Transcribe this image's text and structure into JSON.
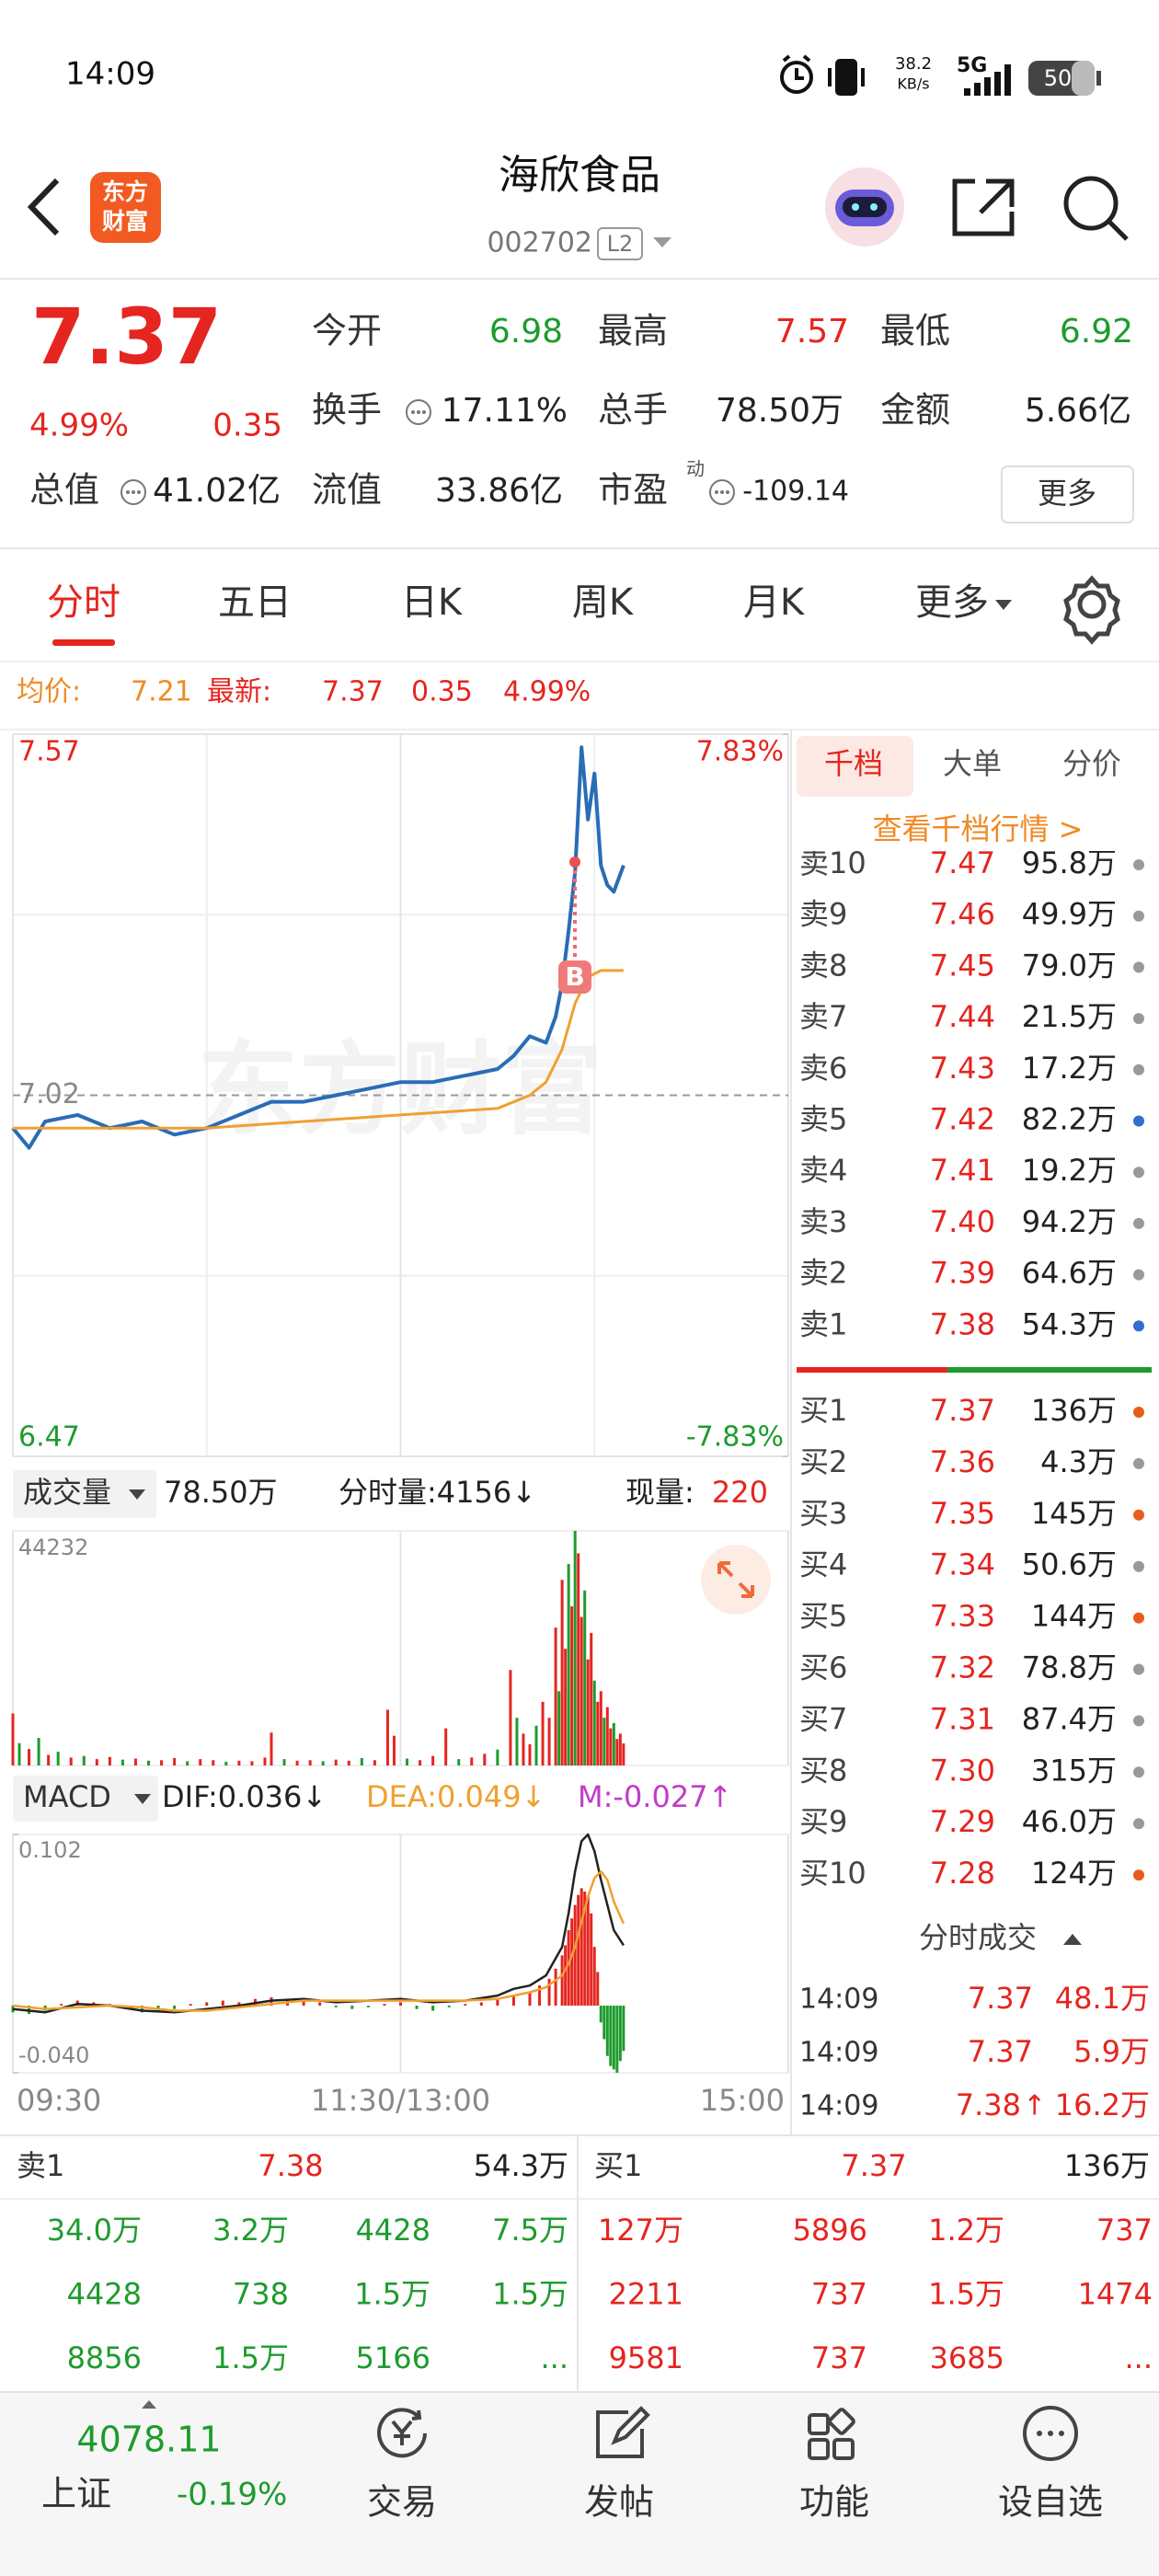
{
  "status_bar": {
    "time": "14:09",
    "net_speed": "38.2",
    "net_unit": "KB/s",
    "network": "5G",
    "battery": "50"
  },
  "header": {
    "logo": [
      "东方",
      "财富"
    ],
    "title": "海欣食品",
    "code": "002702",
    "level": "L2"
  },
  "quote": {
    "price": "7.37",
    "change_pct": "4.99%",
    "change": "0.35",
    "color": "#e5251f",
    "stats": [
      [
        {
          "label": "今开",
          "value": "6.98",
          "color": "#1e9b2d"
        },
        {
          "label": "最高",
          "value": "7.57",
          "color": "#e5251f"
        },
        {
          "label": "最低",
          "value": "6.92",
          "color": "#1e9b2d"
        }
      ],
      [
        {
          "label": "换手",
          "value": "17.11%",
          "color": "#222222"
        },
        {
          "label": "总手",
          "value": "78.50万",
          "color": "#222222"
        },
        {
          "label": "金额",
          "value": "5.66亿",
          "color": "#222222"
        }
      ],
      [
        {
          "label": "总值",
          "value": "41.02亿",
          "color": "#222222"
        },
        {
          "label": "流值",
          "value": "33.86亿",
          "color": "#222222"
        },
        {
          "label": "市盈",
          "sup": "动",
          "value": "-109.14",
          "color": "#222222"
        }
      ]
    ],
    "more_button": "更多"
  },
  "tabs": {
    "items": [
      "分时",
      "五日",
      "日K",
      "周K",
      "月K",
      "更多"
    ],
    "active": 0,
    "active_color": "#e5251f"
  },
  "info": {
    "avg_label": "均价:",
    "avg": "7.21",
    "last_label": "最新:",
    "last": "7.37",
    "change": "0.35",
    "change_pct": "4.99%"
  },
  "intraday": {
    "type": "line",
    "watermark": "东方财富",
    "buy_marker": "B",
    "xlim": [
      0,
      240
    ],
    "xticks": [
      {
        "value": 0,
        "label": "09:30"
      },
      {
        "value": 120,
        "label": "11:30/13:00"
      },
      {
        "value": 240,
        "label": "15:00"
      }
    ],
    "ylim": [
      6.47,
      7.57
    ],
    "yticks": [
      6.47,
      7.02,
      7.57
    ],
    "y2lim": [
      -7.83,
      7.83
    ],
    "y2ticks": [
      {
        "value": -7.83,
        "label": "-7.83%"
      },
      {
        "value": 7.83,
        "label": "7.83%"
      }
    ],
    "series": [
      {
        "name": "最新",
        "color": "#2a6cb6",
        "x": [
          0,
          5,
          10,
          20,
          30,
          40,
          50,
          60,
          70,
          80,
          90,
          100,
          110,
          120,
          130,
          140,
          150,
          155,
          160,
          165,
          168,
          170,
          172,
          174,
          176,
          178,
          180,
          182,
          184,
          186,
          189
        ],
        "values": [
          6.97,
          6.94,
          6.98,
          6.99,
          6.97,
          6.98,
          6.96,
          6.97,
          6.99,
          7.01,
          7.01,
          7.02,
          7.03,
          7.04,
          7.04,
          7.05,
          7.06,
          7.08,
          7.11,
          7.1,
          7.14,
          7.19,
          7.27,
          7.36,
          7.55,
          7.44,
          7.51,
          7.37,
          7.34,
          7.33,
          7.37
        ]
      },
      {
        "name": "均价",
        "color": "#f0a030",
        "x": [
          0,
          30,
          60,
          90,
          120,
          150,
          160,
          165,
          170,
          174,
          178,
          182,
          186,
          189
        ],
        "values": [
          6.97,
          6.97,
          6.97,
          6.98,
          6.99,
          7.0,
          7.02,
          7.04,
          7.09,
          7.16,
          7.2,
          7.21,
          7.21,
          7.21
        ]
      }
    ]
  },
  "volume": {
    "type": "bar",
    "label": "成交量",
    "total": "78.50万",
    "minute_volume": "分时量:4156↓",
    "current_label": "现量:",
    "current": "220",
    "ylim": [
      0,
      44232
    ],
    "yticks": [
      44232
    ],
    "x": [
      0,
      2,
      5,
      8,
      11,
      14,
      18,
      22,
      26,
      30,
      34,
      38,
      42,
      46,
      50,
      54,
      58,
      62,
      66,
      70,
      74,
      78,
      80,
      84,
      88,
      92,
      96,
      100,
      104,
      108,
      112,
      116,
      118,
      122,
      126,
      130,
      134,
      138,
      142,
      146,
      150,
      154,
      156,
      158,
      160,
      162,
      164,
      166,
      168,
      169,
      170,
      171,
      172,
      173,
      174,
      175,
      176,
      177,
      178,
      179,
      180,
      181,
      182,
      183,
      184,
      185,
      186,
      187,
      188,
      189
    ],
    "values": [
      9800,
      4200,
      3100,
      5200,
      2000,
      2600,
      1500,
      1800,
      1200,
      1600,
      1100,
      1300,
      900,
      1000,
      1400,
      800,
      1200,
      1000,
      700,
      900,
      800,
      1500,
      6200,
      1200,
      900,
      1000,
      800,
      1100,
      900,
      1400,
      1000,
      10500,
      5600,
      1300,
      1000,
      1800,
      7000,
      1200,
      1500,
      2200,
      3000,
      18000,
      9000,
      6000,
      4000,
      7500,
      12000,
      9000,
      26000,
      14000,
      35000,
      22000,
      38000,
      30000,
      44232,
      40000,
      28000,
      33000,
      20000,
      25000,
      16000,
      12000,
      14000,
      9000,
      11000,
      7000,
      8000,
      5000,
      6000,
      4156
    ],
    "colors": [
      "#e5251f",
      "#1e9b2d",
      "#e5251f",
      "#1e9b2d",
      "#e5251f",
      "#1e9b2d",
      "#e5251f",
      "#1e9b2d",
      "#e5251f",
      "#e5251f",
      "#1e9b2d",
      "#e5251f",
      "#1e9b2d",
      "#e5251f",
      "#e5251f",
      "#1e9b2d",
      "#e5251f",
      "#e5251f",
      "#1e9b2d",
      "#e5251f",
      "#e5251f",
      "#e5251f",
      "#e5251f",
      "#1e9b2d",
      "#e5251f",
      "#e5251f",
      "#1e9b2d",
      "#e5251f",
      "#e5251f",
      "#1e9b2d",
      "#e5251f",
      "#e5251f",
      "#e5251f",
      "#1e9b2d",
      "#e5251f",
      "#e5251f",
      "#e5251f",
      "#1e9b2d",
      "#e5251f",
      "#e5251f",
      "#1e9b2d",
      "#e5251f",
      "#1e9b2d",
      "#e5251f",
      "#e5251f",
      "#1e9b2d",
      "#e5251f",
      "#e5251f",
      "#e5251f",
      "#1e9b2d",
      "#e5251f",
      "#e5251f",
      "#1e9b2d",
      "#e5251f",
      "#1e9b2d",
      "#e5251f",
      "#e5251f",
      "#1e9b2d",
      "#e5251f",
      "#e5251f",
      "#1e9b2d",
      "#e5251f",
      "#e5251f",
      "#1e9b2d",
      "#e5251f",
      "#e5251f",
      "#1e9b2d",
      "#e5251f",
      "#e5251f",
      "#e5251f"
    ]
  },
  "macd": {
    "type": "line",
    "label": "MACD",
    "dif_label": "DIF:0.036↓",
    "dea_label": "DEA:0.049↓",
    "m_label": "M:-0.027↑",
    "m_label_color": "#c03cc8",
    "ylim": [
      -0.04,
      0.102
    ],
    "yticks": [
      {
        "value": -0.04,
        "label": "-0.040"
      },
      0.102
    ],
    "x": [
      0,
      10,
      20,
      30,
      40,
      50,
      60,
      70,
      80,
      90,
      100,
      110,
      120,
      130,
      140,
      150,
      155,
      160,
      165,
      170,
      172,
      174,
      176,
      178,
      180,
      182,
      184,
      186,
      189
    ],
    "series": [
      {
        "name": "DIF",
        "color": "#222222",
        "values": [
          -0.002,
          -0.004,
          0.001,
          0.0,
          -0.003,
          -0.004,
          -0.002,
          0.0,
          0.003,
          0.004,
          0.002,
          0.003,
          0.004,
          0.002,
          0.003,
          0.006,
          0.01,
          0.012,
          0.018,
          0.035,
          0.055,
          0.08,
          0.098,
          0.102,
          0.092,
          0.075,
          0.06,
          0.045,
          0.036
        ]
      },
      {
        "name": "DEA",
        "color": "#f0a030",
        "values": [
          0.0,
          -0.002,
          -0.001,
          0.0,
          -0.001,
          -0.003,
          -0.003,
          -0.001,
          0.001,
          0.003,
          0.003,
          0.003,
          0.003,
          0.003,
          0.003,
          0.004,
          0.006,
          0.008,
          0.011,
          0.018,
          0.025,
          0.035,
          0.05,
          0.065,
          0.076,
          0.08,
          0.075,
          0.062,
          0.049
        ]
      }
    ],
    "m": {
      "up_color": "#e5251f",
      "down_color": "#1e9b2d",
      "x": [
        0,
        5,
        10,
        15,
        20,
        25,
        30,
        35,
        40,
        45,
        50,
        55,
        60,
        65,
        70,
        75,
        80,
        85,
        90,
        95,
        100,
        105,
        110,
        115,
        120,
        125,
        130,
        135,
        140,
        145,
        150,
        155,
        160,
        163,
        166,
        168,
        170,
        171,
        172,
        173,
        174,
        175,
        176,
        177,
        178,
        179,
        180,
        181,
        182,
        183,
        184,
        185,
        186,
        187,
        188,
        189
      ],
      "values": [
        -0.004,
        -0.005,
        -0.003,
        0.001,
        0.003,
        0.002,
        0.001,
        -0.002,
        -0.004,
        -0.003,
        -0.002,
        0.001,
        0.002,
        0.003,
        0.002,
        0.004,
        0.005,
        0.004,
        0.003,
        0.002,
        -0.001,
        -0.002,
        -0.001,
        0.001,
        0.002,
        -0.002,
        -0.003,
        -0.001,
        0.001,
        0.002,
        0.004,
        0.006,
        0.008,
        0.012,
        0.016,
        0.022,
        0.03,
        0.036,
        0.045,
        0.052,
        0.06,
        0.066,
        0.07,
        0.068,
        0.065,
        0.055,
        0.035,
        0.02,
        -0.01,
        -0.02,
        -0.03,
        -0.036,
        -0.038,
        -0.04,
        -0.033,
        -0.027
      ]
    }
  },
  "order_book": {
    "tabs": [
      "千档",
      "大单",
      "分价"
    ],
    "link": "查看千档行情 >",
    "asks": [
      {
        "label": "卖10",
        "price": "7.47",
        "volume": "95.8万",
        "dot": "#999999"
      },
      {
        "label": "卖9",
        "price": "7.46",
        "volume": "49.9万",
        "dot": "#999999"
      },
      {
        "label": "卖8",
        "price": "7.45",
        "volume": "79.0万",
        "dot": "#999999"
      },
      {
        "label": "卖7",
        "price": "7.44",
        "volume": "21.5万",
        "dot": "#999999"
      },
      {
        "label": "卖6",
        "price": "7.43",
        "volume": "17.2万",
        "dot": "#999999"
      },
      {
        "label": "卖5",
        "price": "7.42",
        "volume": "82.2万",
        "dot": "#2f6fd0"
      },
      {
        "label": "卖4",
        "price": "7.41",
        "volume": "19.2万",
        "dot": "#999999"
      },
      {
        "label": "卖3",
        "price": "7.40",
        "volume": "94.2万",
        "dot": "#999999"
      },
      {
        "label": "卖2",
        "price": "7.39",
        "volume": "64.6万",
        "dot": "#999999"
      },
      {
        "label": "卖1",
        "price": "7.38",
        "volume": "54.3万",
        "dot": "#2f6fd0"
      }
    ],
    "bids": [
      {
        "label": "买1",
        "price": "7.37",
        "volume": "136万",
        "dot": "#e85d1c"
      },
      {
        "label": "买2",
        "price": "7.36",
        "volume": "4.3万",
        "dot": "#999999"
      },
      {
        "label": "买3",
        "price": "7.35",
        "volume": "145万",
        "dot": "#e85d1c"
      },
      {
        "label": "买4",
        "price": "7.34",
        "volume": "50.6万",
        "dot": "#999999"
      },
      {
        "label": "买5",
        "price": "7.33",
        "volume": "144万",
        "dot": "#e85d1c"
      },
      {
        "label": "买6",
        "price": "7.32",
        "volume": "78.8万",
        "dot": "#999999"
      },
      {
        "label": "买7",
        "price": "7.31",
        "volume": "87.4万",
        "dot": "#999999"
      },
      {
        "label": "买8",
        "price": "7.30",
        "volume": "315万",
        "dot": "#999999"
      },
      {
        "label": "买9",
        "price": "7.29",
        "volume": "46.0万",
        "dot": "#999999"
      },
      {
        "label": "买10",
        "price": "7.28",
        "volume": "124万",
        "dot": "#e85d1c"
      }
    ]
  },
  "trades": {
    "title": "分时成交",
    "rows": [
      {
        "time": "14:09",
        "price": "7.37",
        "volume": "48.1万"
      },
      {
        "time": "14:09",
        "price": "7.37",
        "volume": "5.9万"
      },
      {
        "time": "14:09",
        "price": "7.38",
        "arrow": "↑",
        "volume": "16.2万"
      }
    ]
  },
  "bottom_book": {
    "ask1": {
      "label": "卖1",
      "price": "7.38",
      "volume": "54.3万"
    },
    "bid1": {
      "label": "买1",
      "price": "7.37",
      "volume": "136万"
    },
    "ask_queue": [
      [
        "34.0万",
        "3.2万",
        "4428",
        "7.5万"
      ],
      [
        "4428",
        "738",
        "1.5万",
        "1.5万"
      ],
      [
        "8856",
        "1.5万",
        "5166",
        "..."
      ]
    ],
    "bid_queue": [
      [
        "127万",
        "5896",
        "1.2万",
        "737"
      ],
      [
        "2211",
        "737",
        "1.5万",
        "1474"
      ],
      [
        "9581",
        "737",
        "3685",
        "..."
      ]
    ]
  },
  "nav": {
    "index": {
      "value": "4078.11",
      "name": "上证",
      "change": "-0.19%"
    },
    "items": [
      "交易",
      "发帖",
      "功能",
      "设自选"
    ]
  }
}
